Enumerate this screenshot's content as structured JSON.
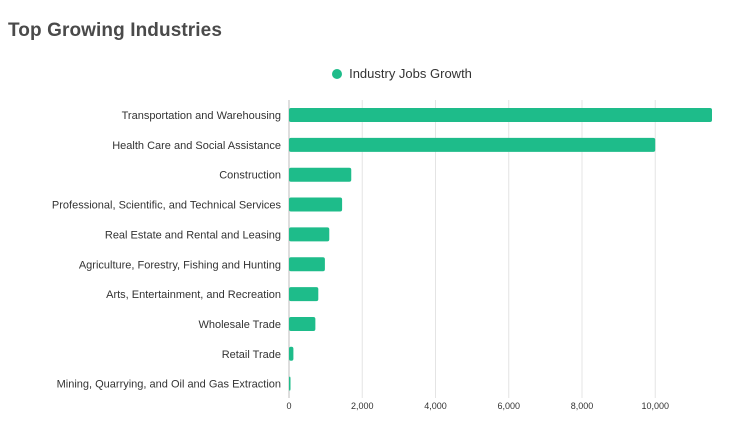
{
  "page": {
    "title": "Top Growing Industries"
  },
  "colors": {
    "bar": "#1ebc8a",
    "grid": "#e4e4e4",
    "axis": "#bdbdbd"
  },
  "chart_data": {
    "type": "bar",
    "orientation": "horizontal",
    "legend": {
      "position": "top",
      "entries": [
        "Industry Jobs Growth"
      ]
    },
    "series": [
      {
        "name": "Industry Jobs Growth",
        "values": [
          11550,
          10000,
          1700,
          1450,
          1100,
          980,
          800,
          720,
          120,
          30
        ]
      }
    ],
    "categories": [
      "Transportation and Warehousing",
      "Health Care and Social Assistance",
      "Construction",
      "Professional, Scientific, and Technical Services",
      "Real Estate and Rental and Leasing",
      "Agriculture, Forestry, Fishing and Hunting",
      "Arts, Entertainment, and Recreation",
      "Wholesale Trade",
      "Retail Trade",
      "Mining, Quarrying, and Oil and Gas Extraction"
    ],
    "x_ticks": [
      0,
      2000,
      4000,
      6000,
      8000,
      10000
    ],
    "x_tick_labels": [
      "0",
      "2,000",
      "4,000",
      "6,000",
      "8,000",
      "10,000"
    ],
    "xlim": [
      0,
      11550
    ],
    "grid": true
  }
}
